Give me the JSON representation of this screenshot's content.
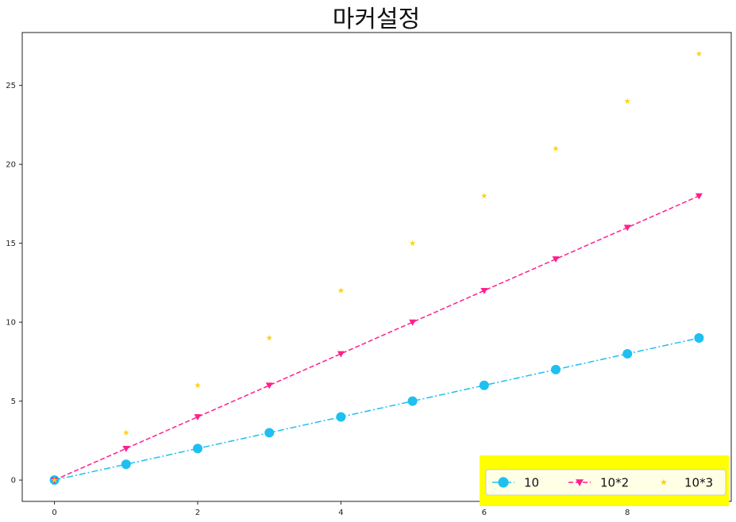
{
  "chart_data": {
    "type": "line",
    "title": "마커설정",
    "xlim": [
      -0.45,
      9.45
    ],
    "ylim": [
      -1.35,
      28.35
    ],
    "x_ticks": [
      0,
      2,
      4,
      6,
      8
    ],
    "y_ticks": [
      0,
      5,
      10,
      15,
      20,
      25
    ],
    "x": [
      0,
      1,
      2,
      3,
      4,
      5,
      6,
      7,
      8,
      9
    ],
    "grid": false,
    "legend_position": "lower right",
    "legend_highlight_color": "#ffff00",
    "series": [
      {
        "name": "10",
        "values": [
          0,
          1,
          2,
          3,
          4,
          5,
          6,
          7,
          8,
          9
        ],
        "color": "#1ec0f0",
        "linestyle": "dash-dot",
        "marker": "circle"
      },
      {
        "name": "10*2",
        "values": [
          0,
          2,
          4,
          6,
          8,
          10,
          12,
          14,
          16,
          18
        ],
        "color": "#ff1f8e",
        "linestyle": "dashed",
        "marker": "triangle-down"
      },
      {
        "name": "10*3",
        "values": [
          0,
          3,
          6,
          9,
          12,
          15,
          18,
          21,
          24,
          27
        ],
        "color": "#ffd21a",
        "linestyle": "none",
        "marker": "star"
      }
    ]
  }
}
